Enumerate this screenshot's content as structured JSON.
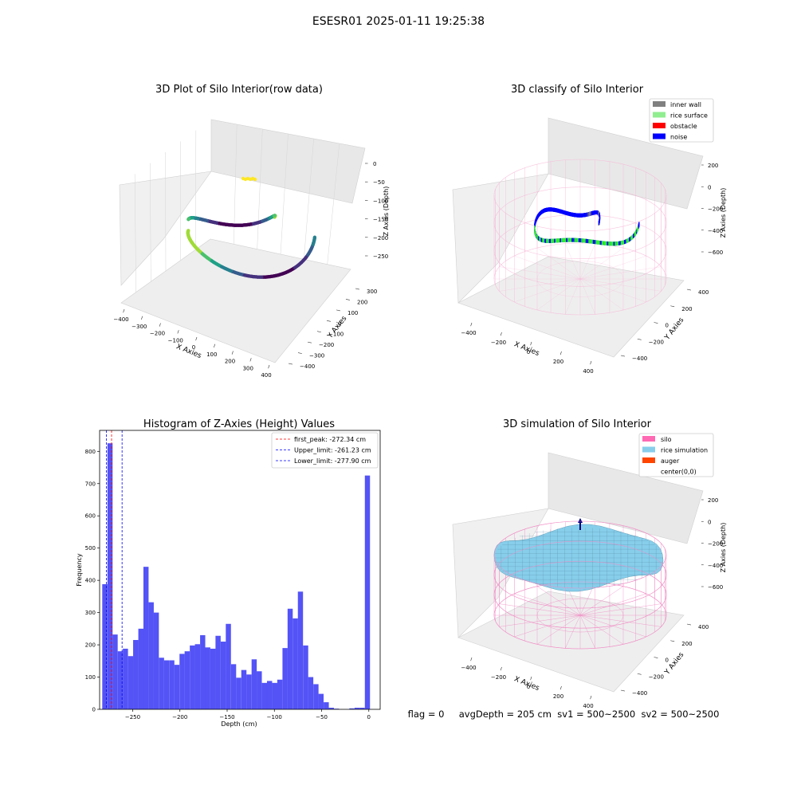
{
  "suptitle": "ESESR01 2025-01-11 19:25:38",
  "footer": "flag = 0     avgDepth = 205 cm  sv1 = 500~2500  sv2 = 500~2500",
  "colors": {
    "bar": "#4a4af6",
    "bar_edge": "#3a3af0",
    "peak": "#ff0000",
    "limit": "#0000ff",
    "silo": "#ff69b4",
    "rice_sim": "#87ceeb",
    "auger": "#ff4500",
    "inner_wall": "#808080",
    "rice_surface": "#90ee90",
    "obstacle": "#ff0000",
    "noise": "#0000ff"
  },
  "chart_data": [
    {
      "type": "scatter",
      "subtype": "3d",
      "title": "3D Plot of Silo Interior(row data)",
      "xlabel": "X Axies",
      "ylabel": "Y Axies",
      "zlabel": "Z Axies (Depth)",
      "xticks": [
        "−400",
        "−300",
        "−200",
        "−100",
        "0",
        "100",
        "200",
        "300",
        "400"
      ],
      "yticks": [
        "−400",
        "−300",
        "−200",
        "−100",
        "0",
        "100",
        "200",
        "300"
      ],
      "zticks": [
        "0",
        "−50",
        "−100",
        "−150",
        "−200",
        "−250"
      ],
      "colormap": "viridis"
    },
    {
      "type": "scatter",
      "subtype": "3d",
      "title": "3D classify of Silo Interior",
      "xlabel": "X Axies",
      "ylabel": "Y Axies",
      "zlabel": "Z Axies (Depth)",
      "xticks": [
        "−400",
        "−200",
        "0",
        "200",
        "400"
      ],
      "yticks": [
        "−400",
        "−200",
        "0",
        "200",
        "400"
      ],
      "zticks": [
        "200",
        "0",
        "−200",
        "−400",
        "−600"
      ],
      "legend": [
        "inner wall",
        "rice surface",
        "obstacle",
        "noise"
      ],
      "legend_position": "top-right"
    },
    {
      "type": "bar",
      "subtype": "histogram",
      "title": "Histogram of Z-Axies (Height) Values",
      "xlabel": "Depth (cm)",
      "ylabel": "Frequency",
      "xlim": [
        -285,
        12
      ],
      "ylim": [
        0,
        865
      ],
      "xticks": [
        -250,
        -200,
        -150,
        -100,
        -50,
        0
      ],
      "xtick_labels": [
        "−250",
        "−200",
        "−150",
        "−100",
        "−50",
        "0"
      ],
      "yticks": [
        0,
        100,
        200,
        300,
        400,
        500,
        600,
        700,
        800
      ],
      "bin_width": 5.45,
      "bins": [
        {
          "x": -279.5,
          "v": 388
        },
        {
          "x": -274.0,
          "v": 825
        },
        {
          "x": -268.6,
          "v": 232
        },
        {
          "x": -263.1,
          "v": 180
        },
        {
          "x": -257.7,
          "v": 188
        },
        {
          "x": -252.2,
          "v": 165
        },
        {
          "x": -246.8,
          "v": 215
        },
        {
          "x": -241.3,
          "v": 250
        },
        {
          "x": -235.9,
          "v": 442
        },
        {
          "x": -230.4,
          "v": 332
        },
        {
          "x": -225.0,
          "v": 300
        },
        {
          "x": -219.5,
          "v": 160
        },
        {
          "x": -214.1,
          "v": 152
        },
        {
          "x": -208.6,
          "v": 152
        },
        {
          "x": -203.2,
          "v": 138
        },
        {
          "x": -197.7,
          "v": 172
        },
        {
          "x": -192.3,
          "v": 180
        },
        {
          "x": -186.8,
          "v": 198
        },
        {
          "x": -181.4,
          "v": 202
        },
        {
          "x": -175.9,
          "v": 230
        },
        {
          "x": -170.5,
          "v": 192
        },
        {
          "x": -165.0,
          "v": 188
        },
        {
          "x": -159.6,
          "v": 228
        },
        {
          "x": -154.1,
          "v": 210
        },
        {
          "x": -148.7,
          "v": 265
        },
        {
          "x": -143.2,
          "v": 140
        },
        {
          "x": -137.8,
          "v": 98
        },
        {
          "x": -132.3,
          "v": 122
        },
        {
          "x": -126.9,
          "v": 108
        },
        {
          "x": -121.4,
          "v": 155
        },
        {
          "x": -116.0,
          "v": 118
        },
        {
          "x": -110.5,
          "v": 82
        },
        {
          "x": -105.1,
          "v": 88
        },
        {
          "x": -99.6,
          "v": 82
        },
        {
          "x": -94.2,
          "v": 92
        },
        {
          "x": -88.7,
          "v": 190
        },
        {
          "x": -83.3,
          "v": 312
        },
        {
          "x": -77.8,
          "v": 282
        },
        {
          "x": -72.4,
          "v": 365
        },
        {
          "x": -66.9,
          "v": 198
        },
        {
          "x": -61.5,
          "v": 100
        },
        {
          "x": -56.0,
          "v": 78
        },
        {
          "x": -50.6,
          "v": 48
        },
        {
          "x": -45.1,
          "v": 22
        },
        {
          "x": -39.7,
          "v": 5
        },
        {
          "x": -34.2,
          "v": 2
        },
        {
          "x": -28.8,
          "v": 0
        },
        {
          "x": -23.3,
          "v": 0
        },
        {
          "x": -17.9,
          "v": 3
        },
        {
          "x": -12.4,
          "v": 5
        },
        {
          "x": -7.0,
          "v": 5
        },
        {
          "x": -1.5,
          "v": 725
        }
      ],
      "vlines": [
        {
          "x": -272.34,
          "color": "peak",
          "label": "first_peak: -272.34 cm"
        },
        {
          "x": -261.23,
          "color": "limit",
          "label": "Upper_limit: -261.23 cm"
        },
        {
          "x": -277.9,
          "color": "limit",
          "label": "Lower_limit: -277.90 cm"
        }
      ],
      "legend_position": "top-right"
    },
    {
      "type": "area",
      "subtype": "3d-surface",
      "title": "3D simulation of Silo Interior",
      "xlabel": "X Axies",
      "ylabel": "Y Axies",
      "zlabel": "Z Axies (Depth)",
      "xticks": [
        "−400",
        "−200",
        "0",
        "200",
        "400"
      ],
      "yticks": [
        "−400",
        "−200",
        "0",
        "200",
        "400"
      ],
      "zticks": [
        "200",
        "0",
        "−200",
        "−400",
        "−600"
      ],
      "legend": [
        "silo",
        "rice simulation",
        "auger",
        "center(0,0)"
      ],
      "legend_position": "top-right"
    }
  ]
}
